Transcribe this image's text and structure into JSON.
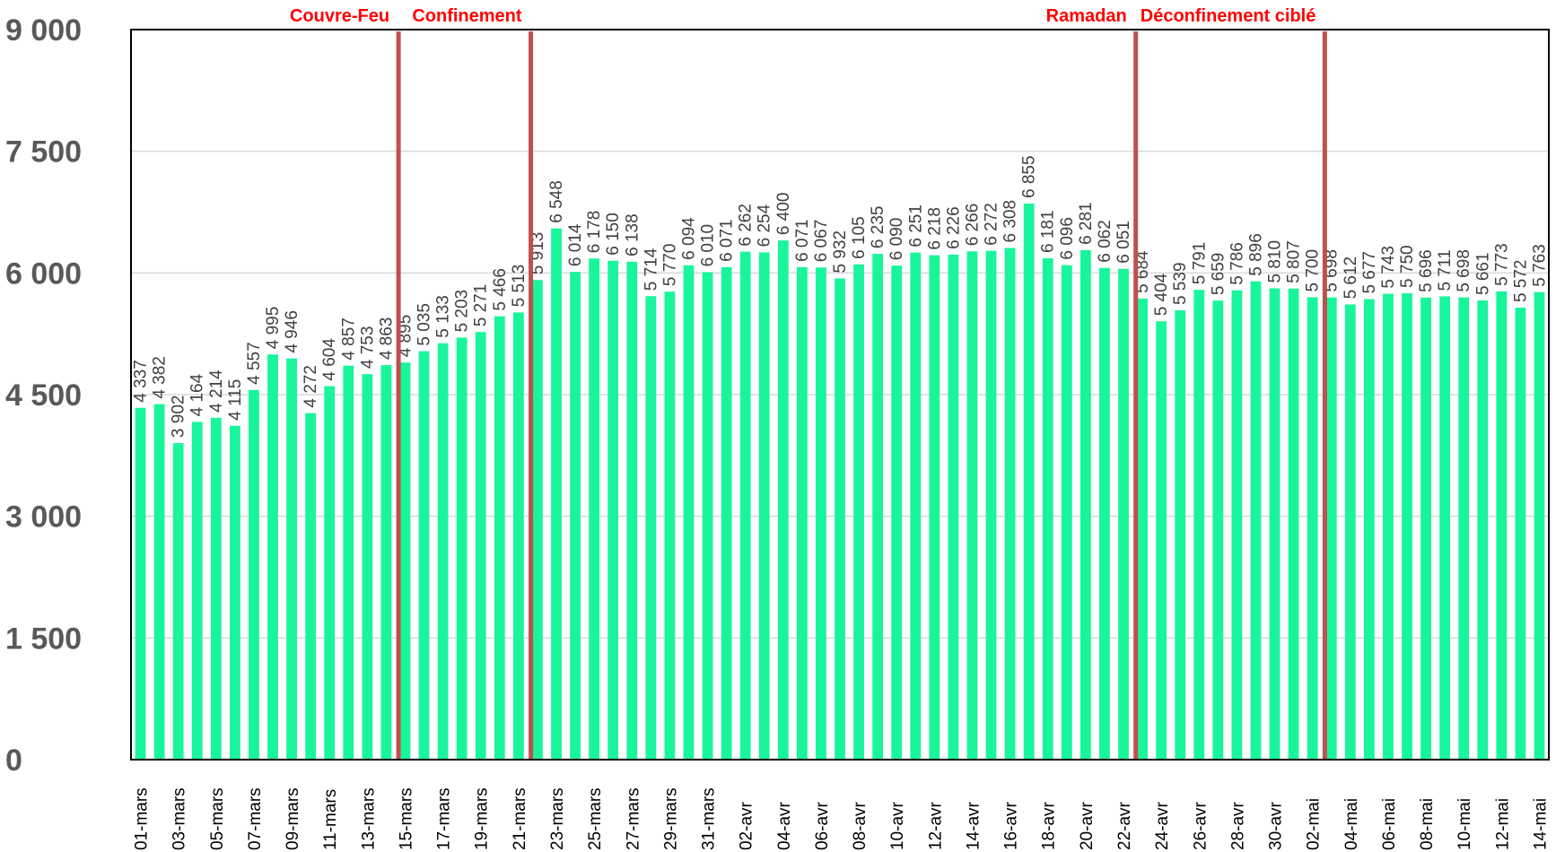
{
  "chart_data": {
    "type": "bar",
    "title": "",
    "xlabel": "",
    "ylabel": "",
    "ylim": [
      0,
      9000
    ],
    "yticks": [
      0,
      1500,
      3000,
      4500,
      6000,
      7500,
      9000
    ],
    "ytick_labels": [
      "0",
      "1 500",
      "3 000",
      "4 500",
      "6 000",
      "7 500",
      "9 000"
    ],
    "grid": true,
    "legend": "none",
    "bar_color": "#19f59b",
    "event_line_color": "#c0504d",
    "event_label_color": "#ff0000",
    "categories": [
      "01-mars",
      "02-mars",
      "03-mars",
      "04-mars",
      "05-mars",
      "06-mars",
      "07-mars",
      "08-mars",
      "09-mars",
      "10-mars",
      "11-mars",
      "12-mars",
      "13-mars",
      "14-mars",
      "15-mars",
      "16-mars",
      "17-mars",
      "18-mars",
      "19-mars",
      "20-mars",
      "21-mars",
      "22-mars",
      "23-mars",
      "24-mars",
      "25-mars",
      "26-mars",
      "27-mars",
      "28-mars",
      "29-mars",
      "30-mars",
      "31-mars",
      "01-avr",
      "02-avr",
      "03-avr",
      "04-avr",
      "05-avr",
      "06-avr",
      "07-avr",
      "08-avr",
      "09-avr",
      "10-avr",
      "11-avr",
      "12-avr",
      "13-avr",
      "14-avr",
      "15-avr",
      "16-avr",
      "17-avr",
      "18-avr",
      "19-avr",
      "20-avr",
      "21-avr",
      "22-avr",
      "23-avr",
      "24-avr",
      "25-avr",
      "26-avr",
      "27-avr",
      "28-avr",
      "29-avr",
      "30-avr",
      "01-mai",
      "02-mai",
      "03-mai",
      "04-mai",
      "05-mai",
      "06-mai",
      "07-mai",
      "08-mai",
      "09-mai",
      "10-mai",
      "11-mai",
      "12-mai",
      "13-mai",
      "14-mai"
    ],
    "values": [
      4337,
      4382,
      3902,
      4164,
      4214,
      4115,
      4557,
      4995,
      4946,
      4272,
      4604,
      4857,
      4753,
      4863,
      4895,
      5035,
      5133,
      5203,
      5271,
      5466,
      5513,
      5913,
      6548,
      6014,
      6178,
      6150,
      6138,
      5714,
      5770,
      6094,
      6010,
      6071,
      6262,
      6254,
      6400,
      6071,
      6067,
      5932,
      6105,
      6235,
      6090,
      6251,
      6218,
      6226,
      6266,
      6272,
      6308,
      6855,
      6181,
      6096,
      6281,
      6062,
      6051,
      5684,
      5404,
      5539,
      5791,
      5659,
      5786,
      5896,
      5810,
      5807,
      5700,
      5698,
      5612,
      5677,
      5743,
      5750,
      5696,
      5711,
      5698,
      5661,
      5773,
      5572,
      5763
    ],
    "value_labels": [
      "4 337",
      "4 382",
      "3 902",
      "4 164",
      "4 214",
      "4 115",
      "4 557",
      "4 995",
      "4 946",
      "4 272",
      "4 604",
      "4 857",
      "4 753",
      "4 863",
      "4 895",
      "5 035",
      "5 133",
      "5 203",
      "5 271",
      "5 466",
      "5 513",
      "5 913",
      "6 548",
      "6 014",
      "6 178",
      "6 150",
      "6 138",
      "5 714",
      "5 770",
      "6 094",
      "6 010",
      "6 071",
      "6 262",
      "6 254",
      "6 400",
      "6 071",
      "6 067",
      "5 932",
      "6 105",
      "6 235",
      "6 090",
      "6 251",
      "6 218",
      "6 226",
      "6 266",
      "6 272",
      "6 308",
      "6 855",
      "6 181",
      "6 096",
      "6 281",
      "6 062",
      "6 051",
      "5 684",
      "5 404",
      "5 539",
      "5 791",
      "5 659",
      "5 786",
      "5 896",
      "5 810",
      "5 807",
      "5 700",
      "5 698",
      "5 612",
      "5 677",
      "5 743",
      "5 750",
      "5 696",
      "5 711",
      "5 698",
      "5 661",
      "5 773",
      "5 572",
      "5 763"
    ],
    "events": [
      {
        "label": "Couvre-Feu",
        "at": "15-mars"
      },
      {
        "label": "Confinement",
        "at": "22-mars"
      },
      {
        "label": "Ramadan",
        "at": "23-avr"
      },
      {
        "label": "Déconfinement ciblé",
        "at": "03-mai"
      }
    ]
  }
}
